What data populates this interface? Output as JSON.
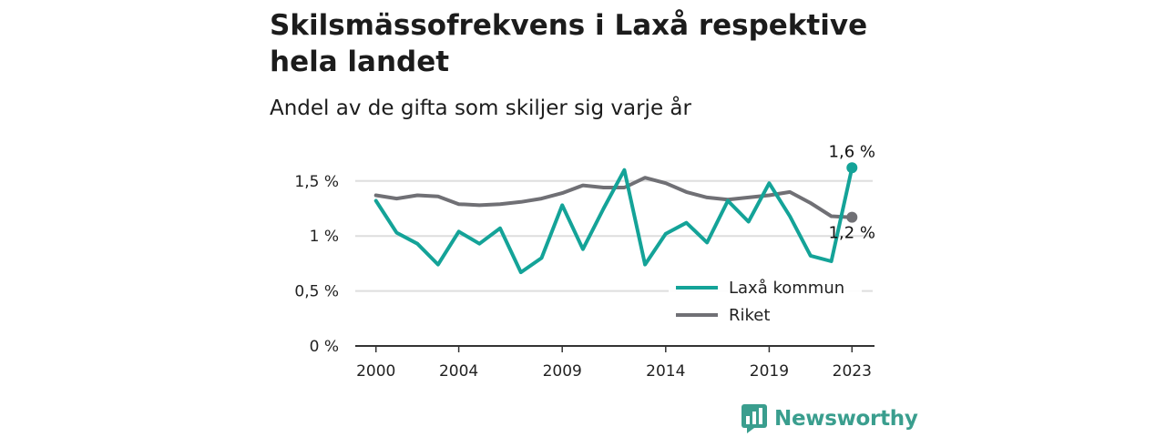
{
  "title": "Skilsmässofrekvens i Laxå respektive hela landet",
  "subtitle": "Andel av de gifta som skiljer sig varje år",
  "brand": {
    "name": "Newsworthy",
    "logo_icon": "bar-chart-speech-bubble-icon"
  },
  "colors": {
    "laxa": "#14a398",
    "riket": "#707075",
    "grid": "#dedede",
    "axis": "#333333",
    "brand": "#3a9e8e"
  },
  "chart_data": {
    "type": "line",
    "title": "Skilsmässofrekvens i Laxå respektive hela landet",
    "subtitle": "Andel av de gifta som skiljer sig varje år",
    "xlabel": "",
    "ylabel": "",
    "x": [
      2000,
      2001,
      2002,
      2003,
      2004,
      2005,
      2006,
      2007,
      2008,
      2009,
      2010,
      2011,
      2012,
      2013,
      2014,
      2015,
      2016,
      2017,
      2018,
      2019,
      2020,
      2021,
      2022,
      2023
    ],
    "xticks": [
      2000,
      2004,
      2009,
      2014,
      2019,
      2023
    ],
    "xlim": [
      1999,
      2024
    ],
    "yticks": [
      {
        "value": 0,
        "label": "0 %"
      },
      {
        "value": 0.5,
        "label": "0,5 %"
      },
      {
        "value": 1,
        "label": "1 %"
      },
      {
        "value": 1.5,
        "label": "1,5 %"
      }
    ],
    "ylim": [
      0,
      1.7
    ],
    "grid": true,
    "legend_position": "bottom-right",
    "series": [
      {
        "name": "Laxå kommun",
        "color": "#14a398",
        "values": [
          1.32,
          1.03,
          0.93,
          0.74,
          1.04,
          0.93,
          1.07,
          0.67,
          0.8,
          1.28,
          0.88,
          1.25,
          1.6,
          0.74,
          1.02,
          1.12,
          0.94,
          1.32,
          1.13,
          1.48,
          1.18,
          0.82,
          0.77,
          1.62
        ],
        "end_label": "1,6 %"
      },
      {
        "name": "Riket",
        "color": "#707075",
        "values": [
          1.37,
          1.34,
          1.37,
          1.36,
          1.29,
          1.28,
          1.29,
          1.31,
          1.34,
          1.39,
          1.46,
          1.44,
          1.44,
          1.53,
          1.48,
          1.4,
          1.35,
          1.33,
          1.35,
          1.37,
          1.4,
          1.3,
          1.18,
          1.17
        ],
        "end_label": "1,2 %"
      }
    ]
  }
}
